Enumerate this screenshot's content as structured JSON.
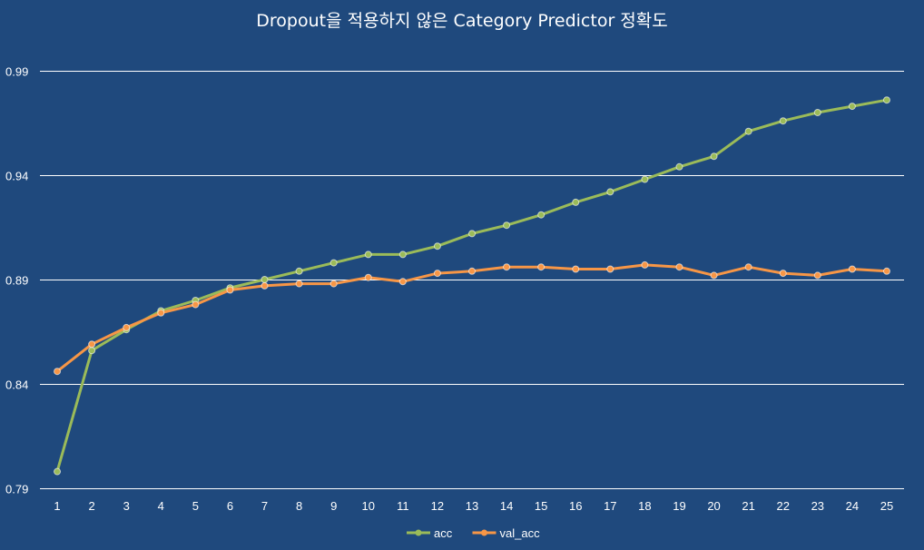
{
  "chart_data": {
    "type": "line",
    "title": "Dropout을 적용하지 않은 Category Predictor 정확도",
    "x": [
      1,
      2,
      3,
      4,
      5,
      6,
      7,
      8,
      9,
      10,
      11,
      12,
      13,
      14,
      15,
      16,
      17,
      18,
      19,
      20,
      21,
      22,
      23,
      24,
      25
    ],
    "yticks": [
      0.79,
      0.84,
      0.89,
      0.94,
      0.99
    ],
    "ylim": [
      0.79,
      1.0
    ],
    "grid": true,
    "legend_position": "bottom",
    "series": [
      {
        "name": "acc",
        "color": "#9bbb59",
        "values": [
          0.798,
          0.856,
          0.866,
          0.875,
          0.88,
          0.886,
          0.89,
          0.894,
          0.898,
          0.902,
          0.902,
          0.906,
          0.912,
          0.916,
          0.921,
          0.927,
          0.932,
          0.938,
          0.944,
          0.949,
          0.961,
          0.966,
          0.97,
          0.973,
          0.976
        ]
      },
      {
        "name": "val_acc",
        "color": "#f79646",
        "values": [
          0.846,
          0.859,
          0.867,
          0.874,
          0.878,
          0.885,
          0.887,
          0.888,
          0.888,
          0.891,
          0.889,
          0.893,
          0.894,
          0.896,
          0.896,
          0.895,
          0.895,
          0.897,
          0.896,
          0.892,
          0.896,
          0.893,
          0.892,
          0.895,
          0.894
        ]
      }
    ]
  }
}
